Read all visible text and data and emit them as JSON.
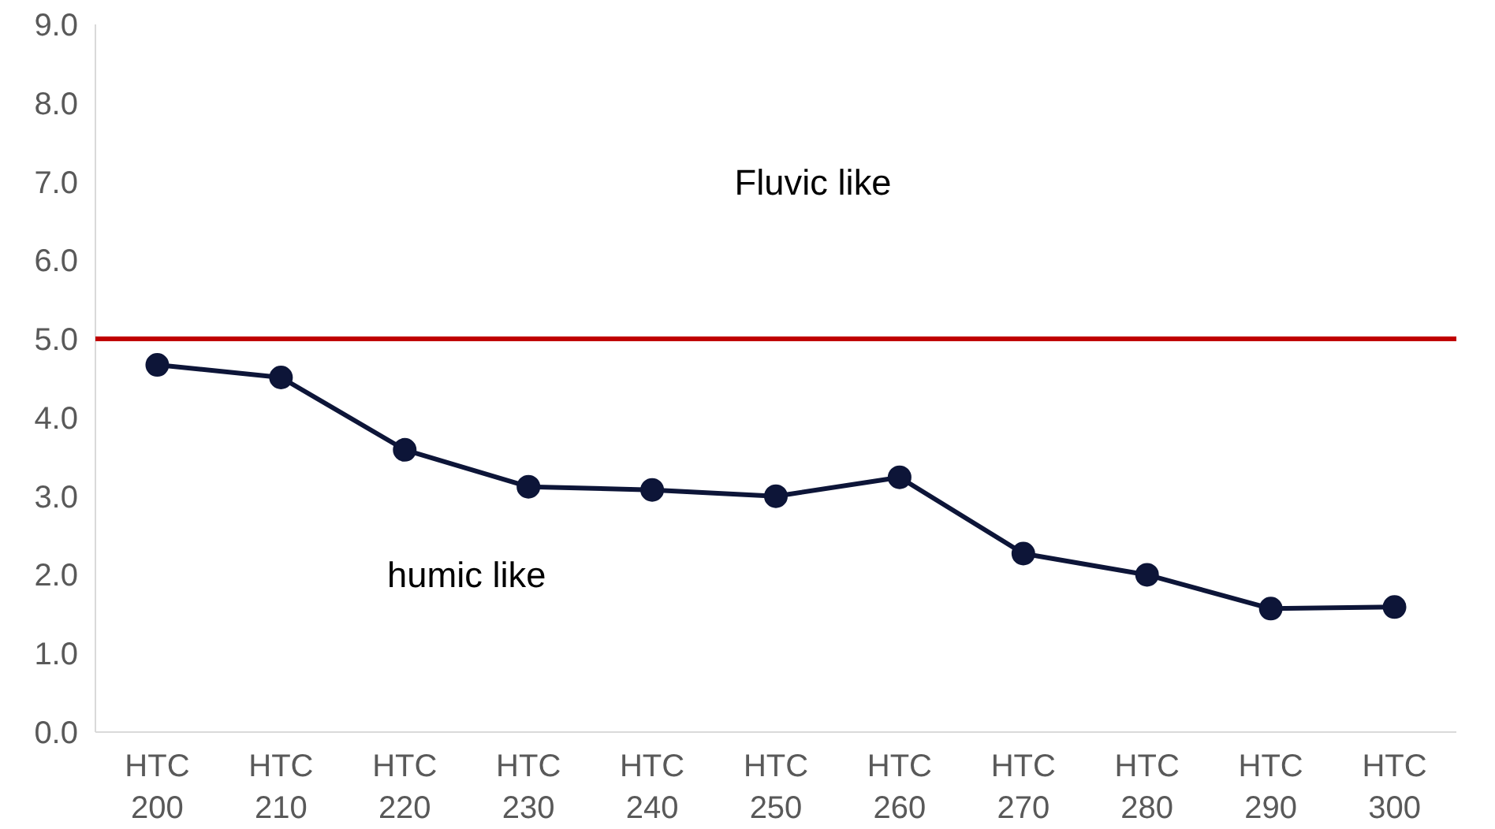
{
  "chart_data": {
    "type": "line",
    "categories": [
      "HTC\n200",
      "HTC\n210",
      "HTC\n220",
      "HTC\n230",
      "HTC\n240",
      "HTC\n250",
      "HTC\n260",
      "HTC\n270",
      "HTC\n280",
      "HTC\n290",
      "HTC\n300"
    ],
    "series": [
      {
        "color": "#0d1538",
        "values": [
          4.67,
          4.51,
          3.59,
          3.12,
          3.08,
          3.0,
          3.24,
          2.27,
          2.0,
          1.57,
          1.59
        ]
      }
    ],
    "ylim": [
      0,
      9
    ],
    "yticks": [
      {
        "value": 0,
        "label": "0.0"
      },
      {
        "value": 1,
        "label": "1.0"
      },
      {
        "value": 2,
        "label": "2.0"
      },
      {
        "value": 3,
        "label": "3.0"
      },
      {
        "value": 4,
        "label": "4.0"
      },
      {
        "value": 5,
        "label": "5.0"
      },
      {
        "value": 6,
        "label": "6.0"
      },
      {
        "value": 7,
        "label": "7.0"
      },
      {
        "value": 8,
        "label": "8.0"
      },
      {
        "value": 9,
        "label": "9.0"
      }
    ],
    "ref_lines": [
      {
        "axis": "y",
        "value": 5.0,
        "color": "#c00000"
      }
    ],
    "annotations": [
      "Fluvic like",
      "humic like"
    ],
    "marker": "circle",
    "grid": false
  }
}
